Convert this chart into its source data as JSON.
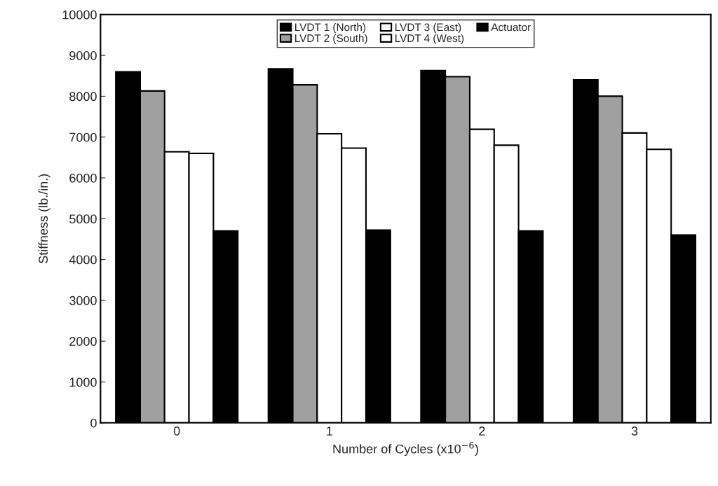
{
  "chart_data": {
    "type": "bar",
    "xlabel": "Number of Cycles (x10$^{−6}$)",
    "ylabel": "Stiffness (lb./in.)",
    "categories": [
      "0",
      "1",
      "2",
      "3"
    ],
    "series": [
      {
        "name": "LVDT 1 (North)",
        "color": "#000000",
        "values": [
          8600,
          8670,
          8630,
          8400
        ]
      },
      {
        "name": "LVDT 2 (South)",
        "color": "#a0a0a0",
        "values": [
          8130,
          8280,
          8480,
          8000
        ]
      },
      {
        "name": "LVDT 3 (East)",
        "color": "#ffffff",
        "values": [
          6640,
          7080,
          7190,
          7100
        ]
      },
      {
        "name": "LVDT 4 (West)",
        "color": "#ffffff",
        "values": [
          6600,
          6730,
          6800,
          6700
        ]
      },
      {
        "name": "Actuator",
        "color": "#000000",
        "values": [
          4700,
          4720,
          4700,
          4600
        ]
      }
    ],
    "ylim": [
      0,
      10000
    ],
    "yticks": [
      0,
      1000,
      2000,
      3000,
      4000,
      5000,
      6000,
      7000,
      8000,
      9000,
      10000
    ],
    "grid": false,
    "legend": "top"
  }
}
